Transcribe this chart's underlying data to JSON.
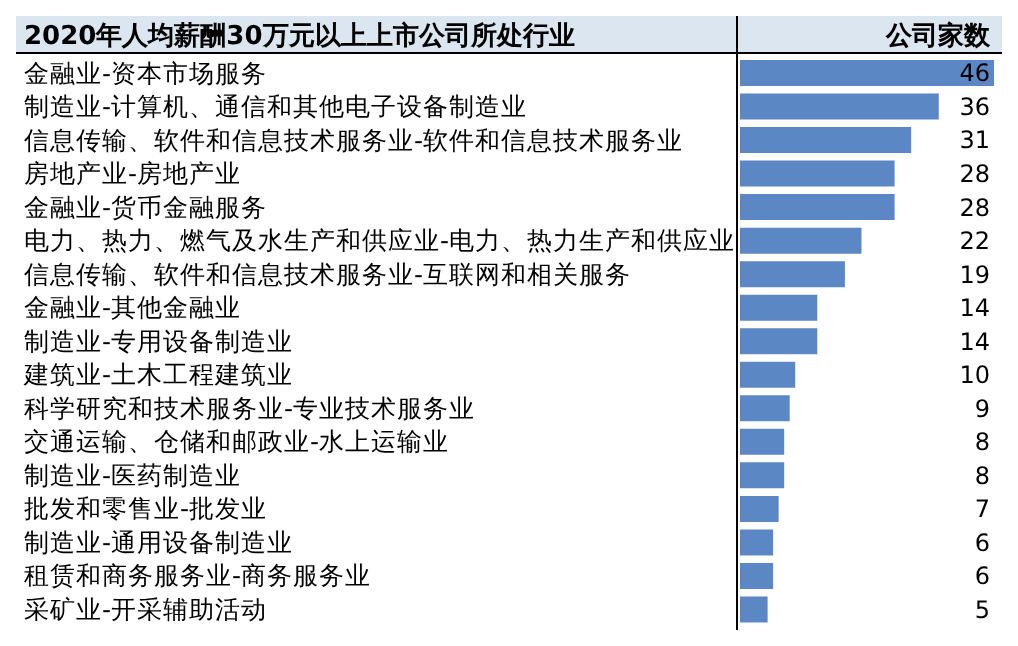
{
  "chart_data": {
    "type": "bar",
    "orientation": "horizontal",
    "title": "2020年人均薪酬30万元以上上市公司所处行业",
    "xlabel": "公司家数",
    "categories": [
      "金融业-资本市场服务",
      "制造业-计算机、通信和其他电子设备制造业",
      "信息传输、软件和信息技术服务业-软件和信息技术服务业",
      "房地产业-房地产业",
      "金融业-货币金融服务",
      "电力、热力、燃气及水生产和供应业-电力、热力生产和供应业",
      "信息传输、软件和信息技术服务业-互联网和相关服务",
      "金融业-其他金融业",
      "制造业-专用设备制造业",
      "建筑业-土木工程建筑业",
      "科学研究和技术服务业-专业技术服务业",
      "交通运输、仓储和邮政业-水上运输业",
      "制造业-医药制造业",
      "批发和零售业-批发业",
      "制造业-通用设备制造业",
      "租赁和商务服务业-商务服务业",
      "采矿业-开采辅助活动"
    ],
    "values": [
      46,
      36,
      31,
      28,
      28,
      22,
      19,
      14,
      14,
      10,
      9,
      8,
      8,
      7,
      6,
      6,
      5
    ],
    "color": "#5b87c5",
    "xlim": [
      0,
      46
    ],
    "tick_labels": "y",
    "data_labels": true
  }
}
